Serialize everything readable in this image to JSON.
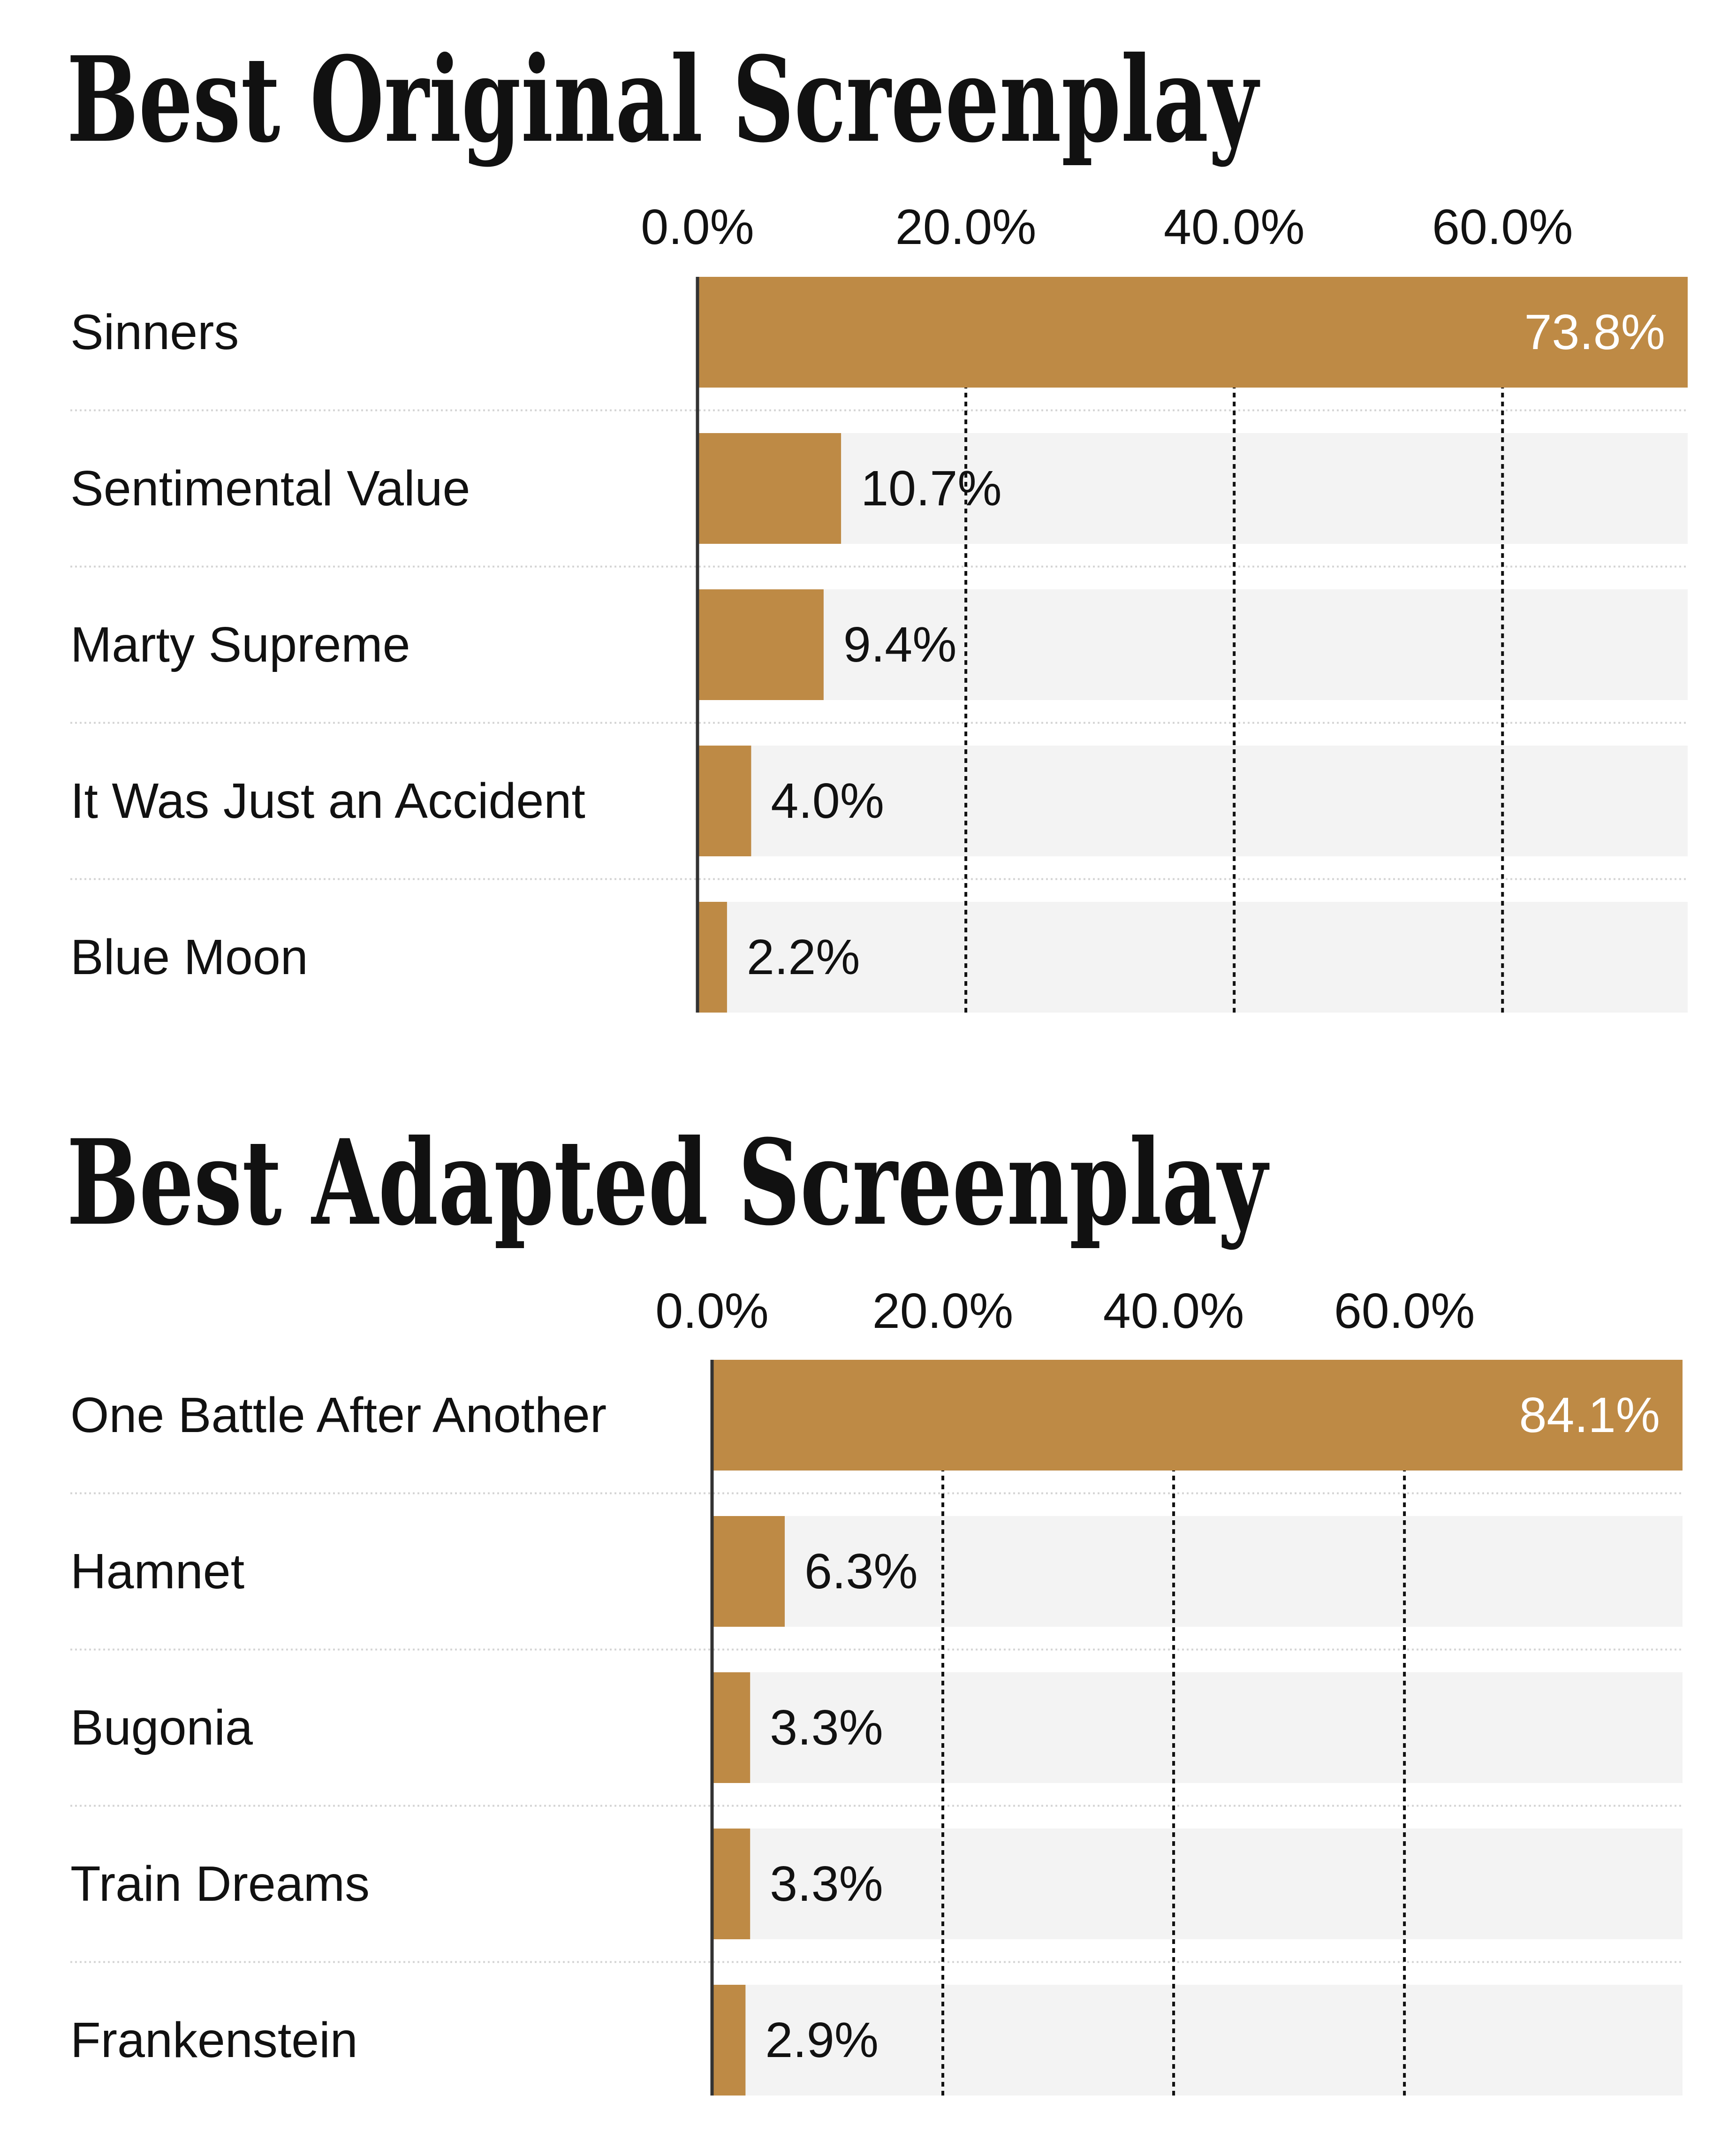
{
  "chart_data": [
    {
      "type": "bar",
      "orientation": "horizontal",
      "title": "Best Original Screenplay",
      "categories": [
        "Sinners",
        "Sentimental Value",
        "Marty Supreme",
        "It Was Just an Accident",
        "Blue Moon"
      ],
      "values": [
        73.8,
        10.7,
        9.4,
        4.0,
        2.2
      ],
      "value_labels": [
        "73.8%",
        "10.7%",
        "9.4%",
        "4.0%",
        "2.2%"
      ],
      "ticks": [
        0,
        20,
        40,
        60
      ],
      "tick_labels": [
        "0.0%",
        "20.0%",
        "40.0%",
        "60.0%"
      ],
      "xlim": [
        0,
        73.8
      ],
      "xlabel": "",
      "ylabel": "",
      "grid": true,
      "legend": "none"
    },
    {
      "type": "bar",
      "orientation": "horizontal",
      "title": "Best Adapted Screenplay",
      "categories": [
        "One Battle After Another",
        "Hamnet",
        "Bugonia",
        "Train Dreams",
        "Frankenstein"
      ],
      "values": [
        84.1,
        6.3,
        3.3,
        3.3,
        2.9
      ],
      "value_labels": [
        "84.1%",
        "6.3%",
        "3.3%",
        "3.3%",
        "2.9%"
      ],
      "ticks": [
        0,
        20,
        40,
        60
      ],
      "tick_labels": [
        "0.0%",
        "20.0%",
        "40.0%",
        "60.0%"
      ],
      "xlim": [
        0,
        84.1
      ],
      "xlabel": "",
      "ylabel": "",
      "grid": true,
      "legend": "none"
    }
  ],
  "colors": {
    "bar": "#be8a45",
    "track": "#f3f3f3",
    "text": "#111111",
    "inside_label": "#ffffff",
    "separator": "#d4d4d4",
    "gridline": "#111111"
  }
}
